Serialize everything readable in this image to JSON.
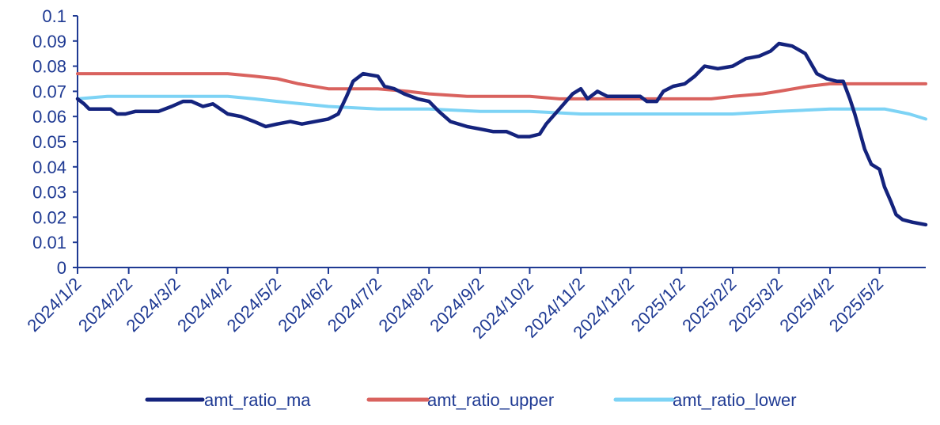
{
  "chart_data": {
    "type": "line",
    "title": "",
    "xlabel": "",
    "ylabel": "",
    "ylim": [
      0,
      0.1
    ],
    "yticks": [
      "0",
      "0.01",
      "0.02",
      "0.03",
      "0.04",
      "0.05",
      "0.06",
      "0.07",
      "0.08",
      "0.09",
      "0.1"
    ],
    "xlim": [
      "2024-01-02",
      "2025-05-30"
    ],
    "xticks": [
      {
        "date": "2024-01-02",
        "label": "2024/1/2"
      },
      {
        "date": "2024-02-02",
        "label": "2024/2/2"
      },
      {
        "date": "2024-03-02",
        "label": "2024/3/2"
      },
      {
        "date": "2024-04-02",
        "label": "2024/4/2"
      },
      {
        "date": "2024-05-02",
        "label": "2024/5/2"
      },
      {
        "date": "2024-06-02",
        "label": "2024/6/2"
      },
      {
        "date": "2024-07-02",
        "label": "2024/7/2"
      },
      {
        "date": "2024-08-02",
        "label": "2024/8/2"
      },
      {
        "date": "2024-09-02",
        "label": "2024/9/2"
      },
      {
        "date": "2024-10-02",
        "label": "2024/10/2"
      },
      {
        "date": "2024-11-02",
        "label": "2024/11/2"
      },
      {
        "date": "2024-12-02",
        "label": "2024/12/2"
      },
      {
        "date": "2025-01-02",
        "label": "2025/1/2"
      },
      {
        "date": "2025-02-02",
        "label": "2025/2/2"
      },
      {
        "date": "2025-03-02",
        "label": "2025/3/2"
      },
      {
        "date": "2025-04-02",
        "label": "2025/4/2"
      },
      {
        "date": "2025-05-02",
        "label": "2025/5/2"
      }
    ],
    "grid": false,
    "legend_position": "bottom",
    "series": [
      {
        "name": "amt_ratio_ma",
        "color": "#14237d",
        "points": [
          [
            "2024-01-02",
            0.067
          ],
          [
            "2024-01-06",
            0.065
          ],
          [
            "2024-01-09",
            0.063
          ],
          [
            "2024-01-14",
            0.063
          ],
          [
            "2024-01-22",
            0.063
          ],
          [
            "2024-01-26",
            0.061
          ],
          [
            "2024-01-31",
            0.061
          ],
          [
            "2024-02-06",
            0.062
          ],
          [
            "2024-02-13",
            0.062
          ],
          [
            "2024-02-20",
            0.062
          ],
          [
            "2024-02-28",
            0.064
          ],
          [
            "2024-03-06",
            0.066
          ],
          [
            "2024-03-11",
            0.066
          ],
          [
            "2024-03-18",
            0.064
          ],
          [
            "2024-03-24",
            0.065
          ],
          [
            "2024-04-02",
            0.061
          ],
          [
            "2024-04-10",
            0.06
          ],
          [
            "2024-04-18",
            0.058
          ],
          [
            "2024-04-25",
            0.056
          ],
          [
            "2024-05-02",
            0.057
          ],
          [
            "2024-05-10",
            0.058
          ],
          [
            "2024-05-17",
            0.057
          ],
          [
            "2024-05-25",
            0.058
          ],
          [
            "2024-06-02",
            0.059
          ],
          [
            "2024-06-08",
            0.061
          ],
          [
            "2024-06-13",
            0.068
          ],
          [
            "2024-06-17",
            0.074
          ],
          [
            "2024-06-23",
            0.077
          ],
          [
            "2024-07-02",
            0.076
          ],
          [
            "2024-07-06",
            0.072
          ],
          [
            "2024-07-12",
            0.071
          ],
          [
            "2024-07-18",
            0.069
          ],
          [
            "2024-07-26",
            0.067
          ],
          [
            "2024-08-02",
            0.066
          ],
          [
            "2024-08-08",
            0.062
          ],
          [
            "2024-08-15",
            0.058
          ],
          [
            "2024-08-25",
            0.056
          ],
          [
            "2024-09-02",
            0.055
          ],
          [
            "2024-09-10",
            0.054
          ],
          [
            "2024-09-18",
            0.054
          ],
          [
            "2024-09-25",
            0.052
          ],
          [
            "2024-10-02",
            0.052
          ],
          [
            "2024-10-08",
            0.053
          ],
          [
            "2024-10-12",
            0.057
          ],
          [
            "2024-10-20",
            0.063
          ],
          [
            "2024-10-28",
            0.069
          ],
          [
            "2024-11-02",
            0.071
          ],
          [
            "2024-11-06",
            0.067
          ],
          [
            "2024-11-12",
            0.07
          ],
          [
            "2024-11-18",
            0.068
          ],
          [
            "2024-11-25",
            0.068
          ],
          [
            "2024-12-02",
            0.068
          ],
          [
            "2024-12-08",
            0.068
          ],
          [
            "2024-12-12",
            0.066
          ],
          [
            "2024-12-18",
            0.066
          ],
          [
            "2024-12-22",
            0.07
          ],
          [
            "2024-12-28",
            0.072
          ],
          [
            "2025-01-04",
            0.073
          ],
          [
            "2025-01-10",
            0.076
          ],
          [
            "2025-01-16",
            0.08
          ],
          [
            "2025-01-24",
            0.079
          ],
          [
            "2025-02-02",
            0.08
          ],
          [
            "2025-02-10",
            0.083
          ],
          [
            "2025-02-18",
            0.084
          ],
          [
            "2025-02-25",
            0.086
          ],
          [
            "2025-03-02",
            0.089
          ],
          [
            "2025-03-10",
            0.088
          ],
          [
            "2025-03-18",
            0.085
          ],
          [
            "2025-03-25",
            0.077
          ],
          [
            "2025-03-31",
            0.075
          ],
          [
            "2025-04-06",
            0.074
          ],
          [
            "2025-04-10",
            0.074
          ],
          [
            "2025-04-14",
            0.067
          ],
          [
            "2025-04-17",
            0.061
          ],
          [
            "2025-04-20",
            0.054
          ],
          [
            "2025-04-23",
            0.047
          ],
          [
            "2025-04-27",
            0.041
          ],
          [
            "2025-05-02",
            0.039
          ],
          [
            "2025-05-05",
            0.032
          ],
          [
            "2025-05-09",
            0.026
          ],
          [
            "2025-05-12",
            0.021
          ],
          [
            "2025-05-16",
            0.019
          ],
          [
            "2025-05-22",
            0.018
          ],
          [
            "2025-05-30",
            0.017
          ]
        ]
      },
      {
        "name": "amt_ratio_upper",
        "color": "#d9625e",
        "points": [
          [
            "2024-01-02",
            0.077
          ],
          [
            "2024-04-02",
            0.077
          ],
          [
            "2024-04-18",
            0.076
          ],
          [
            "2024-05-02",
            0.075
          ],
          [
            "2024-05-15",
            0.073
          ],
          [
            "2024-06-02",
            0.071
          ],
          [
            "2024-06-17",
            0.071
          ],
          [
            "2024-07-02",
            0.071
          ],
          [
            "2024-07-20",
            0.07
          ],
          [
            "2024-08-02",
            0.069
          ],
          [
            "2024-08-25",
            0.068
          ],
          [
            "2024-10-02",
            0.068
          ],
          [
            "2024-10-20",
            0.067
          ],
          [
            "2024-11-02",
            0.067
          ],
          [
            "2024-12-02",
            0.067
          ],
          [
            "2025-01-02",
            0.067
          ],
          [
            "2025-01-20",
            0.067
          ],
          [
            "2025-02-02",
            0.068
          ],
          [
            "2025-02-20",
            0.069
          ],
          [
            "2025-03-02",
            0.07
          ],
          [
            "2025-03-20",
            0.072
          ],
          [
            "2025-04-02",
            0.073
          ],
          [
            "2025-04-20",
            0.073
          ],
          [
            "2025-05-30",
            0.073
          ]
        ]
      },
      {
        "name": "amt_ratio_lower",
        "color": "#7dd3f5",
        "points": [
          [
            "2024-01-02",
            0.067
          ],
          [
            "2024-01-20",
            0.068
          ],
          [
            "2024-04-02",
            0.068
          ],
          [
            "2024-04-18",
            0.067
          ],
          [
            "2024-05-02",
            0.066
          ],
          [
            "2024-06-02",
            0.064
          ],
          [
            "2024-07-02",
            0.063
          ],
          [
            "2024-08-02",
            0.063
          ],
          [
            "2024-09-02",
            0.062
          ],
          [
            "2024-10-02",
            0.062
          ],
          [
            "2024-11-02",
            0.061
          ],
          [
            "2024-12-02",
            0.061
          ],
          [
            "2025-01-02",
            0.061
          ],
          [
            "2025-02-02",
            0.061
          ],
          [
            "2025-03-02",
            0.062
          ],
          [
            "2025-04-02",
            0.063
          ],
          [
            "2025-04-25",
            0.063
          ],
          [
            "2025-05-05",
            0.063
          ],
          [
            "2025-05-20",
            0.061
          ],
          [
            "2025-05-30",
            0.059
          ]
        ]
      }
    ]
  }
}
